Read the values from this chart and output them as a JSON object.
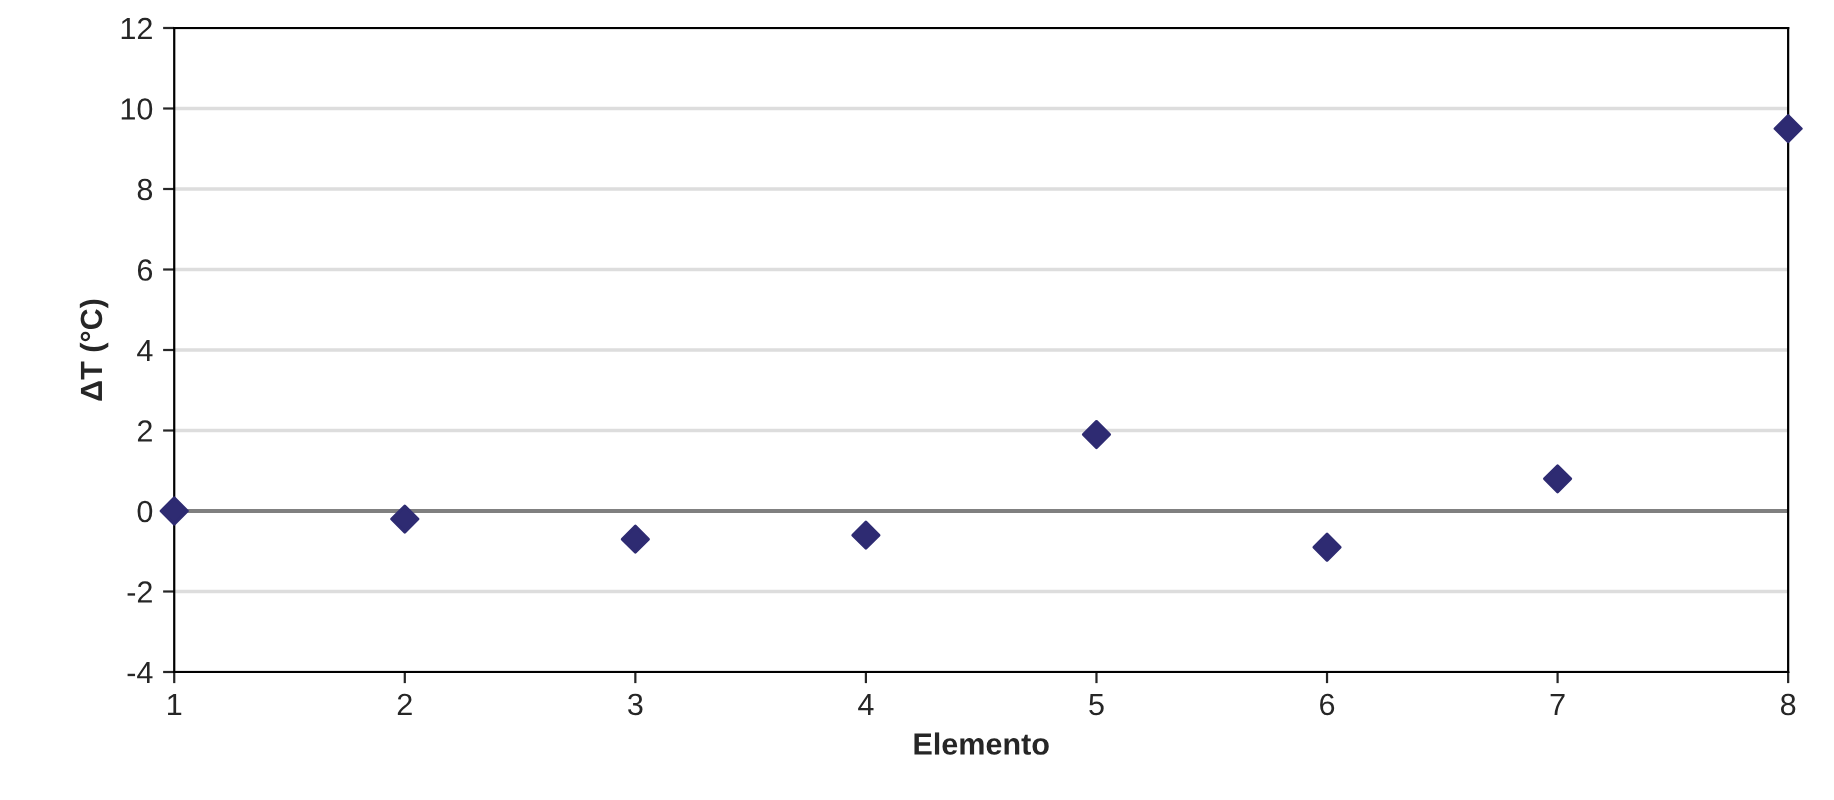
{
  "chart_data": {
    "type": "scatter",
    "xlabel": "Elemento",
    "ylabel": "ΔT (°C)",
    "x": [
      1,
      2,
      3,
      4,
      5,
      6,
      7,
      8
    ],
    "series": [
      {
        "color": "#2e2b72",
        "values": [
          0,
          -0.2,
          -0.7,
          -0.6,
          1.9,
          -0.9,
          0.8,
          9.5
        ]
      }
    ],
    "xlim": [
      1,
      8
    ],
    "xticks": [
      1,
      2,
      3,
      4,
      5,
      6,
      7,
      8
    ],
    "ylim": [
      -4,
      12
    ],
    "yticks": [
      -4,
      -2,
      0,
      2,
      4,
      6,
      8,
      10,
      12
    ],
    "ref_lines": [
      {
        "axis": "y",
        "value": 0,
        "color": "#808080"
      }
    ],
    "grid": "y",
    "marker": "diamond"
  }
}
